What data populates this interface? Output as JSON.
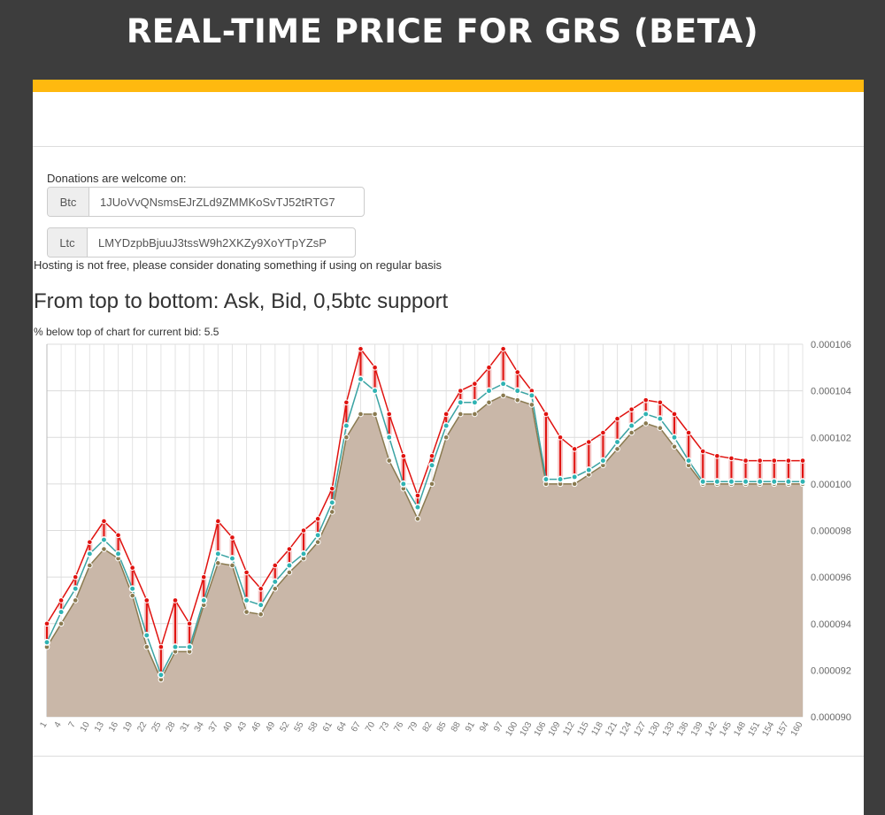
{
  "page": {
    "title": "REAL-TIME PRICE FOR GRS (BETA)"
  },
  "colors": {
    "background": "#3d3d3d",
    "accent": "#ffb90f",
    "area_fill": "#c9b7a8",
    "ask": "#e0120f",
    "bid": "#3aa3a3",
    "support": "#8a7a50",
    "marker": "#2fb3b3"
  },
  "donations": {
    "label": "Donations are welcome on:",
    "btc_label": "Btc",
    "btc_address": "1JUoVvQNsmsEJrZLd9ZMMKoSvTJ52tRTG7",
    "ltc_label": "Ltc",
    "ltc_address": "LMYDzpbBjuuJ3tssW9h2XKZy9XoYTpYZsP",
    "hosting_note": "Hosting is not free, please consider donating something if using on regular basis"
  },
  "chart_section": {
    "heading": "From top to bottom: Ask, Bid, 0,5btc support",
    "pct_label": "% below top of chart for current bid:",
    "pct_value": "5.5"
  },
  "chart_data": {
    "type": "line",
    "title": "",
    "xlabel": "",
    "ylabel": "",
    "ylim": [
      9e-05,
      0.000106
    ],
    "yticks": [
      "0.000106",
      "0.000104",
      "0.000102",
      "0.000100",
      "0.000098",
      "0.000096",
      "0.000094",
      "0.000092",
      "0.000090"
    ],
    "grid": true,
    "x_range": [
      1,
      160
    ],
    "series": [
      {
        "name": "Ask",
        "x": [
          1,
          4,
          7,
          10,
          13,
          16,
          19,
          22,
          25,
          28,
          31,
          34,
          37,
          40,
          43,
          46,
          49,
          52,
          55,
          58,
          61,
          64,
          67,
          70,
          73,
          76,
          79,
          82,
          85,
          88,
          91,
          94,
          97,
          100,
          103,
          106,
          109,
          112,
          115,
          118,
          121,
          124,
          127,
          130,
          133,
          136,
          139,
          142,
          145,
          148,
          151,
          154,
          157,
          160
        ],
        "values": [
          9.4e-05,
          9.5e-05,
          9.6e-05,
          9.75e-05,
          9.84e-05,
          9.78e-05,
          9.64e-05,
          9.5e-05,
          9.3e-05,
          9.5e-05,
          9.4e-05,
          9.6e-05,
          9.84e-05,
          9.77e-05,
          9.62e-05,
          9.55e-05,
          9.65e-05,
          9.72e-05,
          9.8e-05,
          9.85e-05,
          9.98e-05,
          0.0001035,
          0.0001058,
          0.000105,
          0.000103,
          0.0001012,
          9.95e-05,
          0.0001012,
          0.000103,
          0.000104,
          0.0001043,
          0.000105,
          0.0001058,
          0.0001048,
          0.000104,
          0.000103,
          0.000102,
          0.0001015,
          0.0001018,
          0.0001022,
          0.0001028,
          0.0001032,
          0.0001036,
          0.0001035,
          0.000103,
          0.0001022,
          0.0001014,
          0.0001012,
          0.0001011,
          0.000101,
          0.000101,
          0.000101,
          0.000101,
          0.000101
        ]
      },
      {
        "name": "Bid",
        "x": [
          1,
          4,
          7,
          10,
          13,
          16,
          19,
          22,
          25,
          28,
          31,
          34,
          37,
          40,
          43,
          46,
          49,
          52,
          55,
          58,
          61,
          64,
          67,
          70,
          73,
          76,
          79,
          82,
          85,
          88,
          91,
          94,
          97,
          100,
          103,
          106,
          109,
          112,
          115,
          118,
          121,
          124,
          127,
          130,
          133,
          136,
          139,
          142,
          145,
          148,
          151,
          154,
          157,
          160
        ],
        "values": [
          9.32e-05,
          9.45e-05,
          9.55e-05,
          9.7e-05,
          9.76e-05,
          9.7e-05,
          9.55e-05,
          9.35e-05,
          9.18e-05,
          9.3e-05,
          9.3e-05,
          9.5e-05,
          9.7e-05,
          9.68e-05,
          9.5e-05,
          9.48e-05,
          9.58e-05,
          9.65e-05,
          9.7e-05,
          9.78e-05,
          9.92e-05,
          0.0001025,
          0.0001045,
          0.000104,
          0.000102,
          0.0001,
          9.9e-05,
          0.0001008,
          0.0001025,
          0.0001035,
          0.0001035,
          0.000104,
          0.0001043,
          0.000104,
          0.0001038,
          0.0001002,
          0.0001002,
          0.0001003,
          0.0001006,
          0.000101,
          0.0001018,
          0.0001025,
          0.000103,
          0.0001028,
          0.000102,
          0.000101,
          0.0001001,
          0.0001001,
          0.0001001,
          0.0001001,
          0.0001001,
          0.0001001,
          0.0001001,
          0.0001001
        ]
      },
      {
        "name": "0,5btc support",
        "x": [
          1,
          4,
          7,
          10,
          13,
          16,
          19,
          22,
          25,
          28,
          31,
          34,
          37,
          40,
          43,
          46,
          49,
          52,
          55,
          58,
          61,
          64,
          67,
          70,
          73,
          76,
          79,
          82,
          85,
          88,
          91,
          94,
          97,
          100,
          103,
          106,
          109,
          112,
          115,
          118,
          121,
          124,
          127,
          130,
          133,
          136,
          139,
          142,
          145,
          148,
          151,
          154,
          157,
          160
        ],
        "values": [
          9.3e-05,
          9.4e-05,
          9.5e-05,
          9.65e-05,
          9.72e-05,
          9.68e-05,
          9.52e-05,
          9.3e-05,
          9.16e-05,
          9.28e-05,
          9.28e-05,
          9.48e-05,
          9.66e-05,
          9.65e-05,
          9.45e-05,
          9.44e-05,
          9.55e-05,
          9.62e-05,
          9.68e-05,
          9.75e-05,
          9.88e-05,
          0.000102,
          0.000103,
          0.000103,
          0.000101,
          9.98e-05,
          9.85e-05,
          0.0001,
          0.000102,
          0.000103,
          0.000103,
          0.0001035,
          0.0001038,
          0.0001036,
          0.0001034,
          0.0001,
          0.0001,
          0.0001,
          0.0001004,
          0.0001008,
          0.0001015,
          0.0001022,
          0.0001026,
          0.0001024,
          0.0001016,
          0.0001008,
          0.0001,
          0.0001,
          0.0001,
          0.0001,
          0.0001,
          0.0001,
          0.0001,
          0.0001
        ]
      }
    ]
  }
}
